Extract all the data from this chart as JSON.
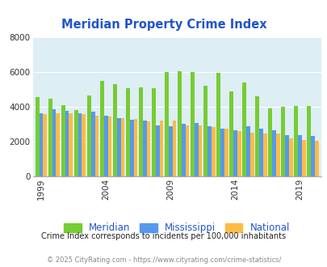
{
  "title": "Meridian Property Crime Index",
  "years": [
    1999,
    2000,
    2001,
    2002,
    2003,
    2004,
    2005,
    2006,
    2007,
    2008,
    2009,
    2010,
    2011,
    2012,
    2013,
    2014,
    2015,
    2016,
    2017,
    2018,
    2019,
    2020
  ],
  "meridian": [
    4550,
    4450,
    4100,
    3800,
    4650,
    5500,
    5300,
    5050,
    5100,
    5050,
    6000,
    6050,
    6000,
    5200,
    5950,
    4900,
    5400,
    4600,
    3900,
    4000,
    4050,
    4050
  ],
  "mississippi": [
    3650,
    3850,
    3750,
    3650,
    3700,
    3500,
    3350,
    3250,
    3200,
    2950,
    2900,
    3000,
    3050,
    2900,
    2750,
    2650,
    2900,
    2750,
    2650,
    2350,
    2350,
    2300
  ],
  "national": [
    3600,
    3650,
    3650,
    3600,
    3500,
    3450,
    3350,
    3300,
    3150,
    3200,
    3200,
    2950,
    2950,
    2850,
    2750,
    2600,
    2500,
    2480,
    2450,
    2200,
    2100,
    2050
  ],
  "meridian_color": "#77cc33",
  "mississippi_color": "#5599ee",
  "national_color": "#ffbb44",
  "bg_color": "#ddeef5",
  "ylim": [
    0,
    8000
  ],
  "yticks": [
    0,
    2000,
    4000,
    6000,
    8000
  ],
  "xtick_years": [
    1999,
    2004,
    2009,
    2014,
    2019
  ],
  "subtitle": "Crime Index corresponds to incidents per 100,000 inhabitants",
  "footer": "© 2025 CityRating.com - https://www.cityrating.com/crime-statistics/",
  "title_color": "#2255cc",
  "subtitle_color": "#222222",
  "footer_color": "#888888",
  "legend_labels": [
    "Meridian",
    "Mississippi",
    "National"
  ]
}
